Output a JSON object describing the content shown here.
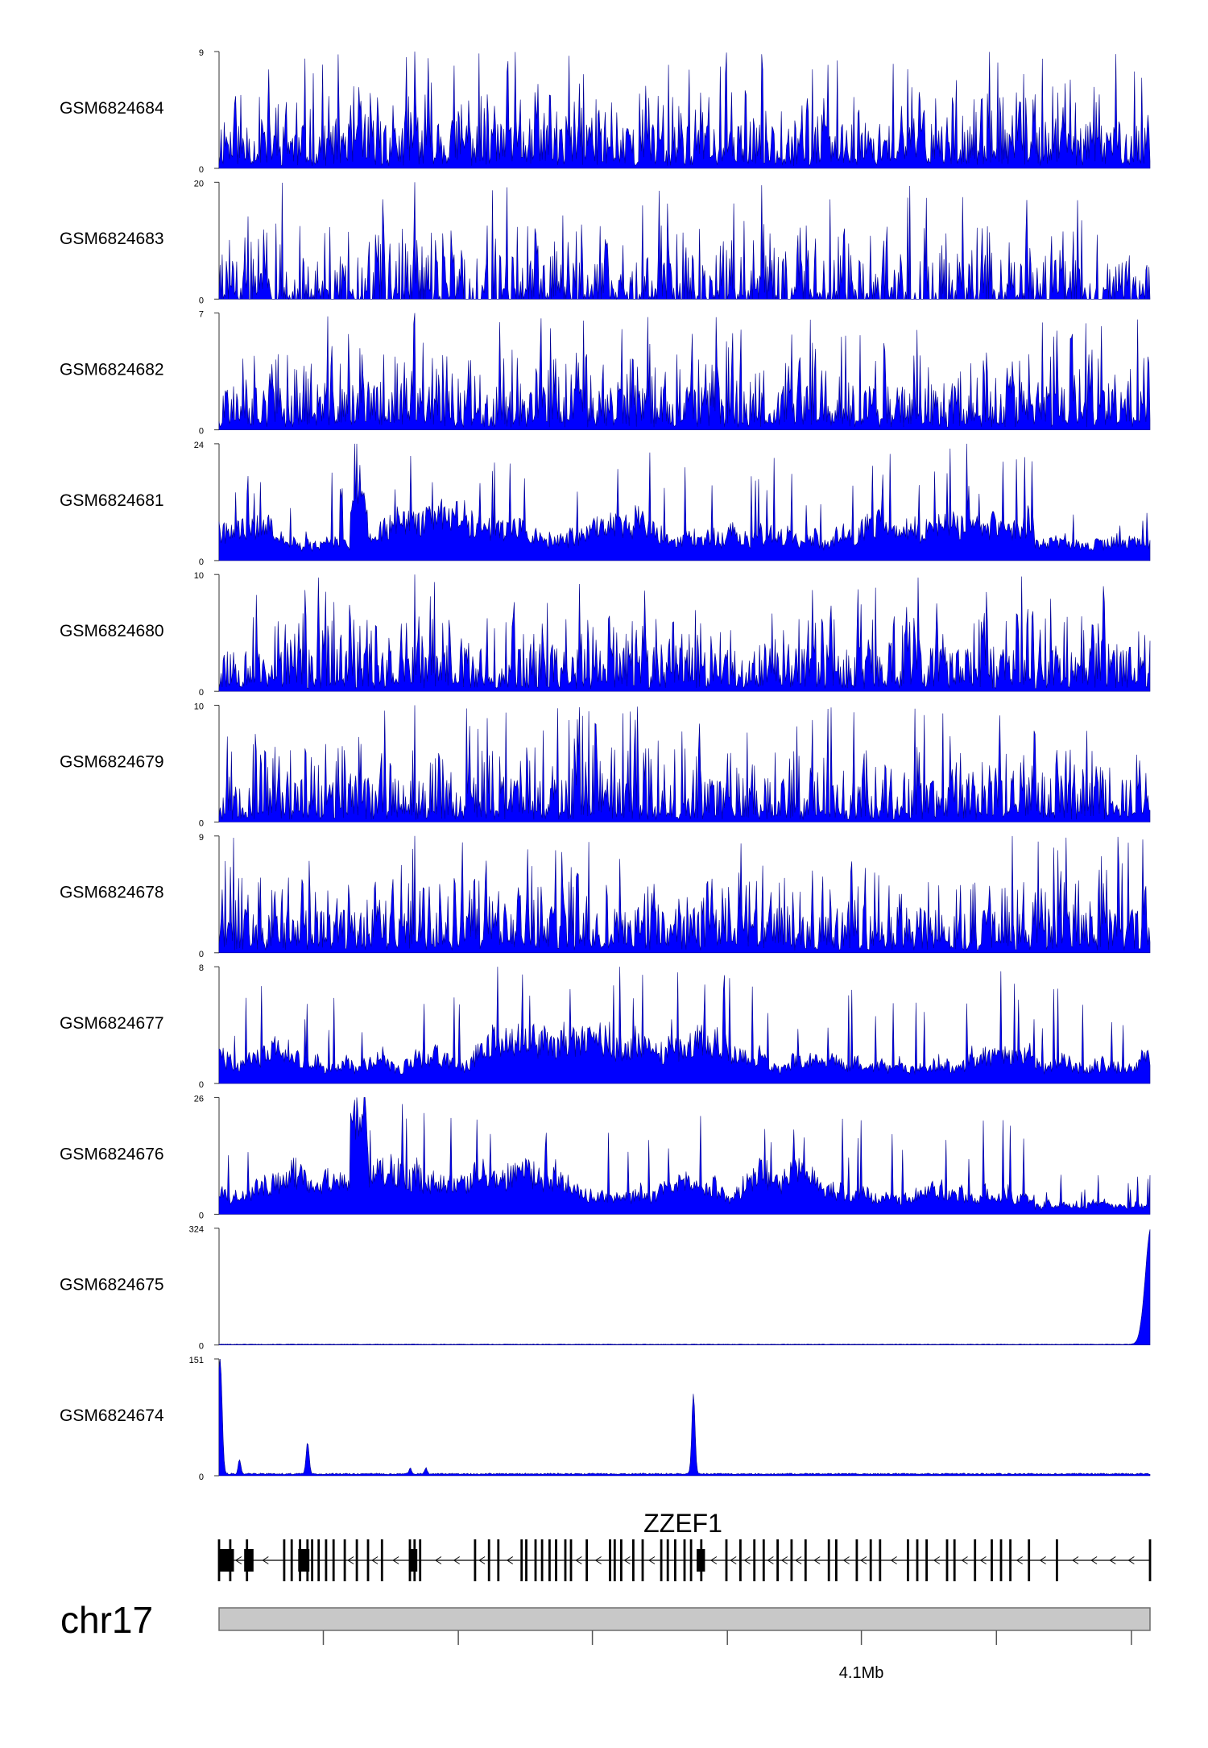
{
  "chart_data": {
    "type": "area",
    "color": "#0000ff",
    "tracks": [
      {
        "name": "GSM6824684",
        "ymax": 9,
        "ymin": 0,
        "profile": "sparse-spiky",
        "seed": 11
      },
      {
        "name": "GSM6824683",
        "ymax": 20,
        "ymin": 0,
        "profile": "sparse-peaks",
        "seed": 23
      },
      {
        "name": "GSM6824682",
        "ymax": 7,
        "ymin": 0,
        "profile": "sparse-spiky",
        "seed": 37
      },
      {
        "name": "GSM6824681",
        "ymax": 24,
        "ymin": 0,
        "profile": "dense",
        "seed": 41
      },
      {
        "name": "GSM6824680",
        "ymax": 10,
        "ymin": 0,
        "profile": "sparse-spiky",
        "seed": 53
      },
      {
        "name": "GSM6824679",
        "ymax": 10,
        "ymin": 0,
        "profile": "sparse-spiky",
        "seed": 67
      },
      {
        "name": "GSM6824678",
        "ymax": 9,
        "ymin": 0,
        "profile": "sparse-spiky",
        "seed": 71
      },
      {
        "name": "GSM6824677",
        "ymax": 8,
        "ymin": 0,
        "profile": "medium",
        "seed": 83
      },
      {
        "name": "GSM6824676",
        "ymax": 26,
        "ymin": 0,
        "profile": "dense",
        "seed": 97
      },
      {
        "name": "GSM6824675",
        "ymax": 324,
        "ymin": 0,
        "profile": "end-peak",
        "seed": 101
      },
      {
        "name": "GSM6824674",
        "ymax": 151,
        "ymin": 0,
        "profile": "few-peaks",
        "seed": 113
      }
    ],
    "gene": {
      "name": "ZZEF1",
      "strand": "-",
      "exons": [
        0.0,
        0.012,
        0.03,
        0.07,
        0.078,
        0.087,
        0.095,
        0.1,
        0.107,
        0.115,
        0.123,
        0.135,
        0.148,
        0.16,
        0.175,
        0.205,
        0.21,
        0.216,
        0.275,
        0.29,
        0.3,
        0.325,
        0.33,
        0.34,
        0.347,
        0.355,
        0.362,
        0.372,
        0.378,
        0.395,
        0.42,
        0.425,
        0.432,
        0.445,
        0.455,
        0.475,
        0.482,
        0.49,
        0.5,
        0.507,
        0.518,
        0.545,
        0.56,
        0.575,
        0.585,
        0.6,
        0.615,
        0.63,
        0.655,
        0.663,
        0.685,
        0.7,
        0.71,
        0.74,
        0.75,
        0.76,
        0.782,
        0.79,
        0.812,
        0.83,
        0.84,
        0.85,
        0.87,
        0.9,
        1.0
      ],
      "thick_blocks": [
        [
          0.0,
          0.016
        ],
        [
          0.027,
          0.037
        ],
        [
          0.085,
          0.097
        ],
        [
          0.204,
          0.213
        ],
        [
          0.513,
          0.522
        ]
      ]
    },
    "chromosome": "chr17",
    "axis": {
      "tick_positions": [
        0.112,
        0.257,
        0.401,
        0.546,
        0.69,
        0.835,
        0.98
      ],
      "labeled_tick": {
        "position": 0.69,
        "label": "4.1Mb"
      }
    },
    "ylim_min_label": "0"
  }
}
